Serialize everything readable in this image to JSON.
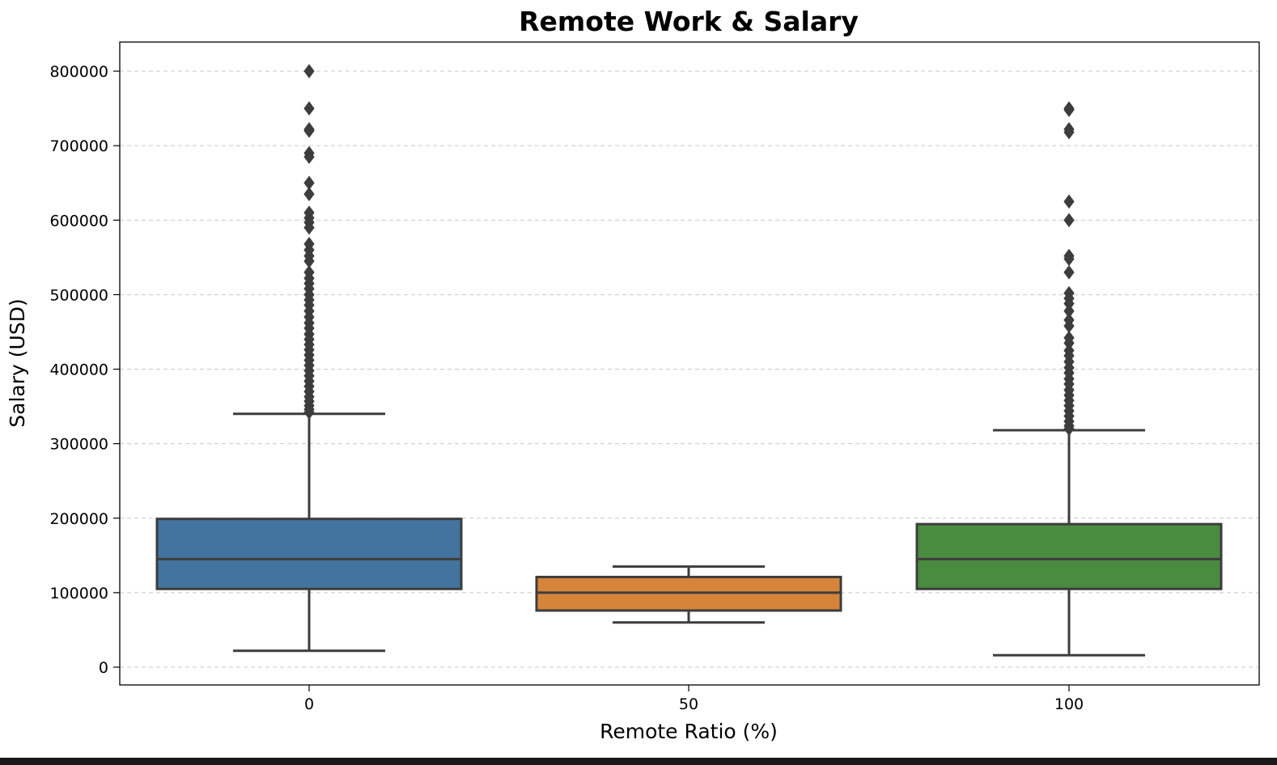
{
  "chart_data": {
    "type": "box",
    "title": "Remote Work & Salary",
    "xlabel": "Remote Ratio (%)",
    "ylabel": "Salary (USD)",
    "categories": [
      "0",
      "50",
      "100"
    ],
    "ylim": [
      -23000,
      840000
    ],
    "yticks": [
      0,
      100000,
      200000,
      300000,
      400000,
      500000,
      600000,
      700000,
      800000
    ],
    "ytick_labels": [
      "0",
      "100000",
      "200000",
      "300000",
      "400000",
      "500000",
      "600000",
      "700000",
      "800000"
    ],
    "grid": {
      "y": true,
      "style": "dashed"
    },
    "boxes": [
      {
        "category": "0",
        "color": "#4374a0",
        "whisker_low": 22000,
        "q1": 105000,
        "median": 145000,
        "q3": 199000,
        "whisker_high": 340000,
        "outliers": [
          800000,
          750000,
          722000,
          720000,
          690000,
          685000,
          650000,
          635000,
          610000,
          603000,
          597000,
          590000,
          568000,
          560000,
          552000,
          545000,
          530000,
          522000,
          515000,
          508000,
          500000,
          493000,
          486000,
          478000,
          470000,
          462000,
          455000,
          447000,
          440000,
          433000,
          426000,
          419000,
          412000,
          405000,
          398000,
          391000,
          384000,
          377000,
          370000,
          363000,
          357000,
          351000,
          346000,
          342000
        ]
      },
      {
        "category": "50",
        "color": "#d6843a",
        "whisker_low": 60000,
        "q1": 76000,
        "median": 100000,
        "q3": 121000,
        "whisker_high": 135000,
        "outliers": []
      },
      {
        "category": "100",
        "color": "#4a8c3f",
        "whisker_low": 16000,
        "q1": 105000,
        "median": 145000,
        "q3": 192000,
        "whisker_high": 318000,
        "outliers": [
          750000,
          748000,
          722000,
          718000,
          625000,
          600000,
          552000,
          548000,
          530000,
          502000,
          495000,
          488000,
          478000,
          466000,
          458000,
          442000,
          435000,
          425000,
          418000,
          410000,
          402000,
          395000,
          387000,
          380000,
          372000,
          365000,
          358000,
          351000,
          344000,
          337000,
          330000,
          324000,
          320000
        ]
      }
    ]
  }
}
